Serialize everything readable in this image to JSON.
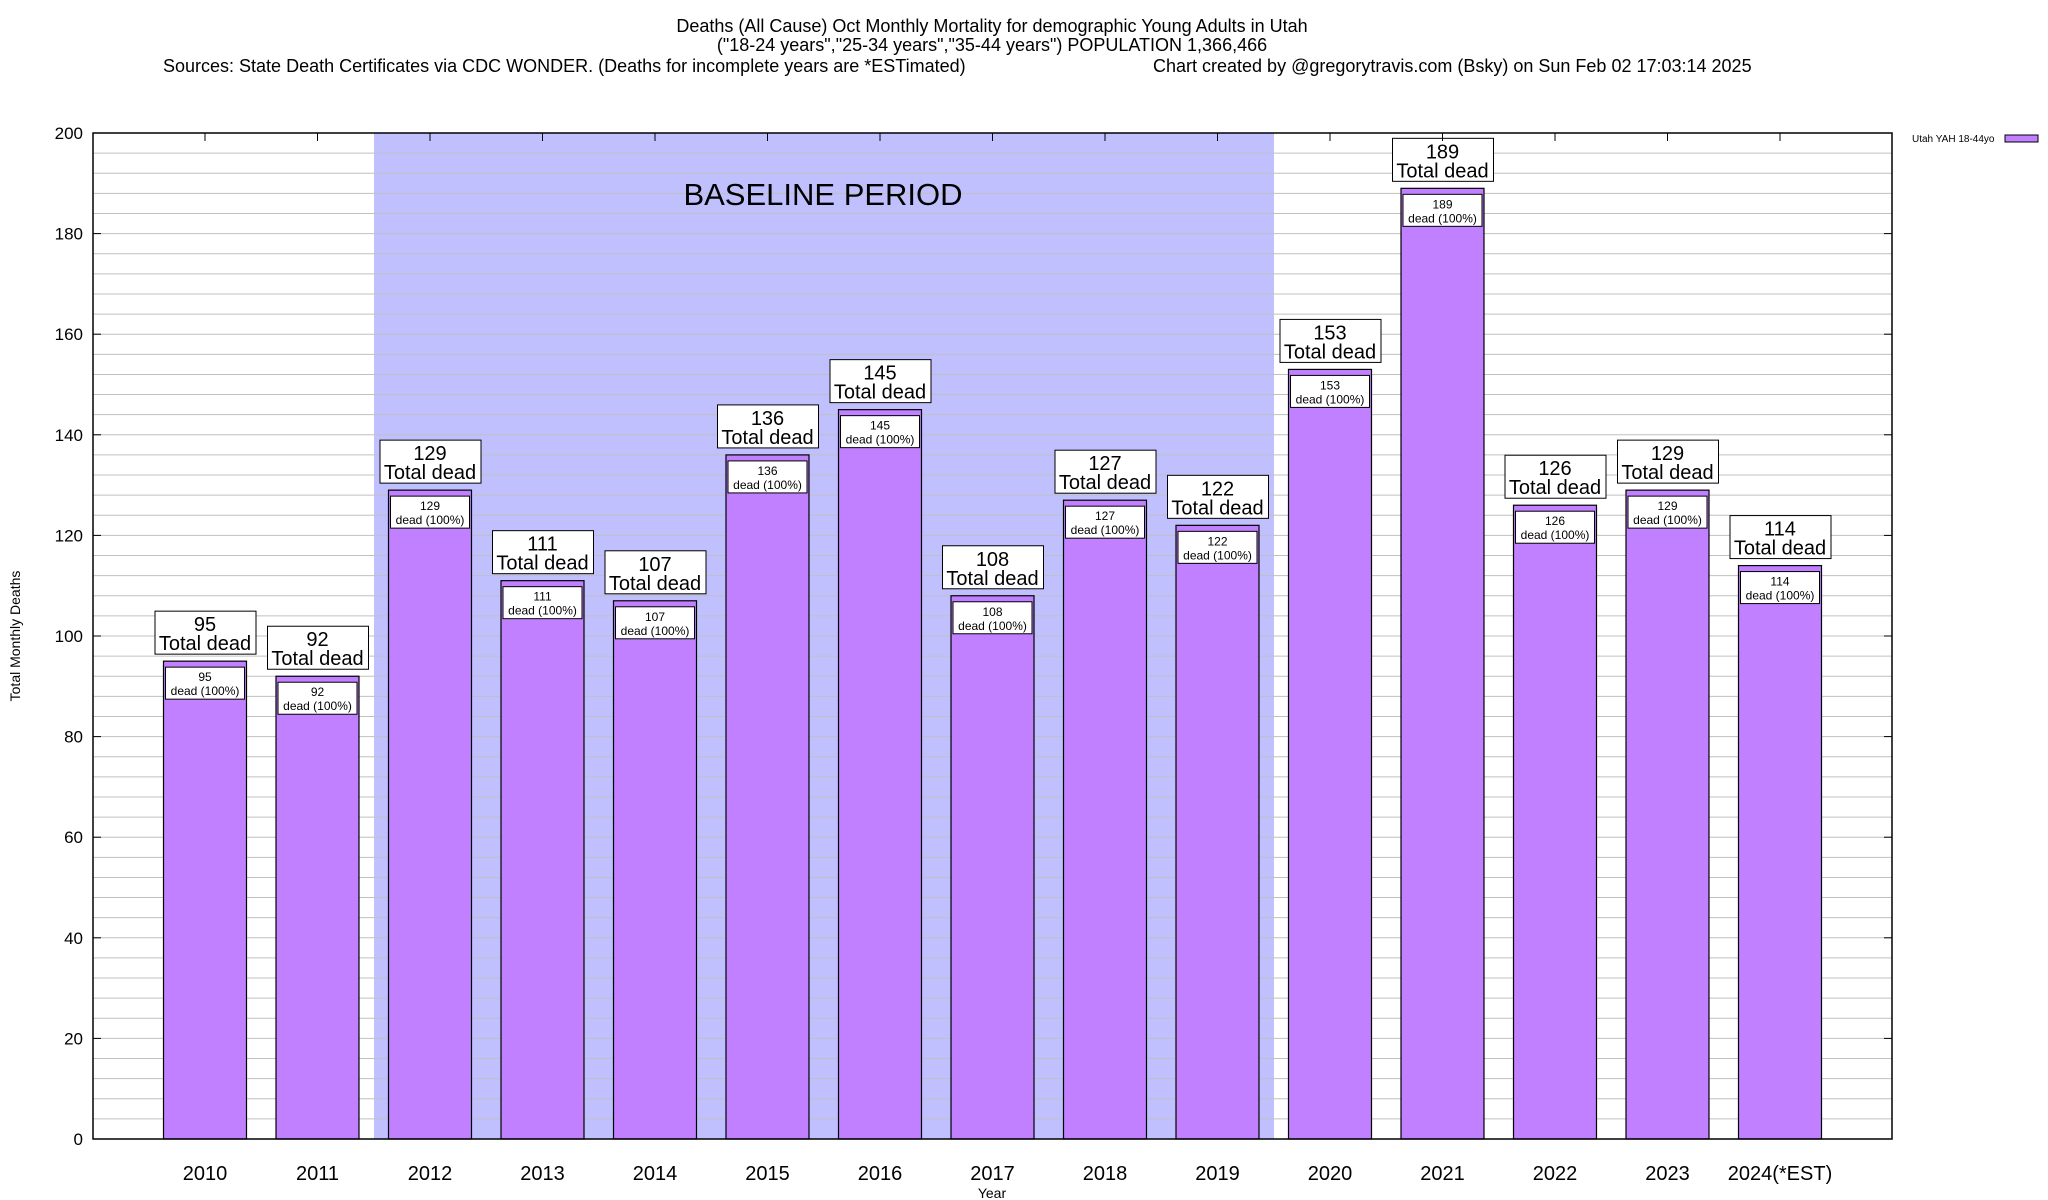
{
  "chart_data": {
    "type": "bar",
    "title_lines": [
      "Deaths (All Cause) Oct Monthly Mortality for demographic Young Adults in Utah",
      "(\"18-24 years\",\"25-34 years\",\"35-44 years\") POPULATION 1,366,466"
    ],
    "sources": "Sources: State Death Certificates via CDC WONDER. (Deaths for incomplete years are *ESTimated)",
    "credit": "Chart created by @gregorytravis.com (Bsky) on Sun Feb 02 17:03:14 2025",
    "xlabel": "Year",
    "ylabel": "Total Monthly Deaths",
    "ylim": [
      0,
      200
    ],
    "yticks": [
      0,
      20,
      40,
      60,
      80,
      100,
      120,
      140,
      160,
      180,
      200
    ],
    "grid": true,
    "legend_position": "top-right",
    "categories": [
      "2010",
      "2011",
      "2012",
      "2013",
      "2014",
      "2015",
      "2016",
      "2017",
      "2018",
      "2019",
      "2020",
      "2021",
      "2022",
      "2023",
      "2024(*EST)"
    ],
    "series": [
      {
        "name": "Utah YAH 18-44yo",
        "color": "#c080ff",
        "values": [
          95,
          92,
          129,
          111,
          107,
          136,
          145,
          108,
          127,
          122,
          153,
          189,
          126,
          129,
          114
        ]
      }
    ],
    "label_total_suffix": "Total dead",
    "label_inner_suffix": "dead (100%)",
    "baseline_region": {
      "label": "BASELINE PERIOD",
      "from": "2012",
      "to": "2019",
      "color": "#c0c0ff"
    }
  }
}
